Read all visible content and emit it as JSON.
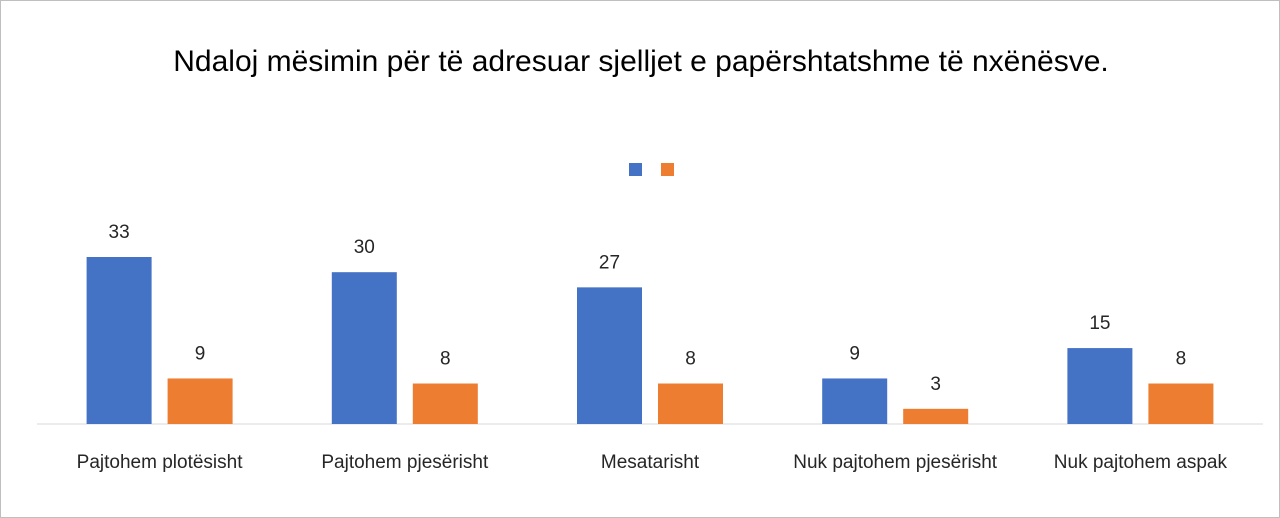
{
  "chart_data": {
    "type": "bar",
    "title": "Ndaloj mësimin për të adresuar sjelljet e papërshtatshme të nxënësve.",
    "categories": [
      "Pajtohem plotësisht",
      "Pajtohem pjesërisht",
      "Mesatarisht",
      "Nuk pajtohem pjesërisht",
      "Nuk pajtohem aspak"
    ],
    "series": [
      {
        "color": "#4472c4",
        "values": [
          33,
          30,
          27,
          9,
          15
        ]
      },
      {
        "color": "#ed7d31",
        "values": [
          9,
          8,
          8,
          3,
          8
        ]
      }
    ]
  }
}
